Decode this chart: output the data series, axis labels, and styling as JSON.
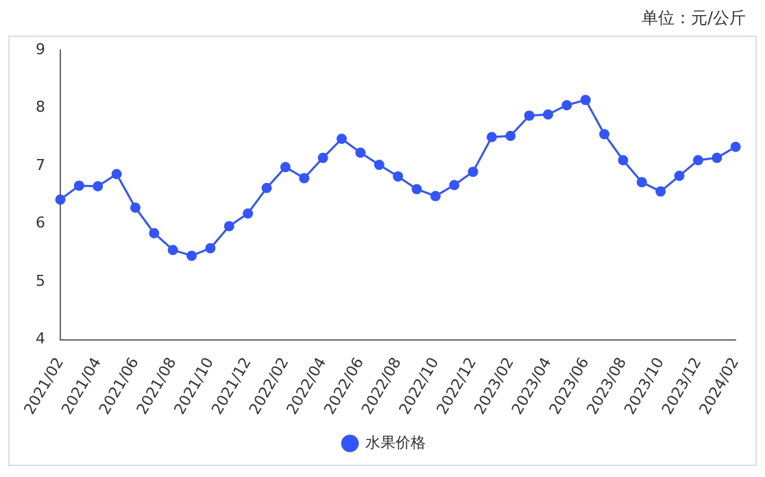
{
  "chart_data": {
    "type": "line",
    "annotations": [
      "单位：元/公斤"
    ],
    "categories": [
      "2021/02",
      null,
      "2021/04",
      null,
      "2021/06",
      null,
      "2021/08",
      null,
      "2021/10",
      null,
      "2021/12",
      null,
      "2022/02",
      null,
      "2022/04",
      null,
      "2022/06",
      null,
      "2022/08",
      null,
      "2022/10",
      null,
      "2022/12",
      null,
      "2023/02",
      null,
      "2023/04",
      null,
      "2023/06",
      null,
      "2023/08",
      null,
      "2023/10",
      null,
      "2023/12",
      null,
      "2024/02"
    ],
    "series": [
      {
        "name": "水果价格",
        "color": "#3355ff",
        "values": [
          6.42,
          6.66,
          6.65,
          6.86,
          6.28,
          5.84,
          5.55,
          5.45,
          5.58,
          5.96,
          6.18,
          6.62,
          6.98,
          6.79,
          7.14,
          7.47,
          7.23,
          7.02,
          6.82,
          6.6,
          6.48,
          6.67,
          6.9,
          7.5,
          7.52,
          7.87,
          7.89,
          8.05,
          8.14,
          7.55,
          7.1,
          6.72,
          6.56,
          6.83,
          7.1,
          7.14,
          7.33
        ]
      }
    ],
    "ylim": [
      4,
      9
    ],
    "yticks": [
      4,
      5,
      6,
      7,
      8,
      9
    ],
    "grid": false,
    "legend": "bottom",
    "marker": "circle",
    "line_style": "solid"
  }
}
